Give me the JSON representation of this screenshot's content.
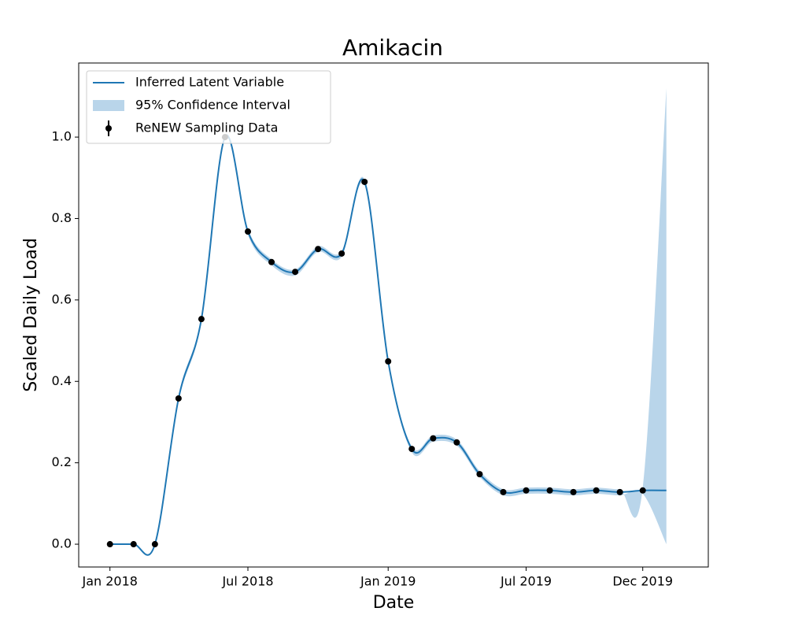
{
  "chart_data": {
    "type": "line",
    "title": "Amikacin",
    "x_label": "Date",
    "y_label": "Scaled Daily Load",
    "xlim": [
      "2017-11-21",
      "2020-02-25"
    ],
    "xticks": [
      {
        "value": "2018-01",
        "label": "Jan 2018"
      },
      {
        "value": "2018-07",
        "label": "Jul 2018"
      },
      {
        "value": "2019-01",
        "label": "Jan 2019"
      },
      {
        "value": "2019-07",
        "label": "Jul 2019"
      },
      {
        "value": "2019-12",
        "label": "Dec 2019"
      }
    ],
    "ylim": [
      -0.056,
      1.182
    ],
    "yticks": [
      {
        "value": 0,
        "label": "0.0"
      },
      0.2,
      0.4,
      0.6,
      0.8,
      {
        "value": 1,
        "label": "1.0"
      }
    ],
    "legend": "upper left",
    "line": {
      "name": "Inferred Latent Variable",
      "color": "#1f77b4",
      "x": [
        "2018-01",
        "2018-02",
        "2018-03",
        "2018-04",
        "2018-05",
        "2018-06",
        "2018-07",
        "2018-08",
        "2018-09",
        "2018-10",
        "2018-11",
        "2018-12",
        "2019-01",
        "2019-02",
        "2019-03",
        "2019-04",
        "2019-05",
        "2019-06",
        "2019-07",
        "2019-08",
        "2019-09",
        "2019-10",
        "2019-11",
        "2019-12",
        "2020-01"
      ],
      "values": [
        0,
        0,
        0,
        0.358,
        0.553,
        1.0,
        0.768,
        0.693,
        0.669,
        0.725,
        0.714,
        0.89,
        0.449,
        0.234,
        0.26,
        0.25,
        0.172,
        0.128,
        0.132,
        0.132,
        0.128,
        0.132,
        0.128,
        0.132,
        0.132
      ]
    },
    "band": {
      "name": "95% Confidence Interval",
      "color": "#b9d5ea",
      "x": [
        "2018-01",
        "2018-02",
        "2018-03",
        "2018-04",
        "2018-05",
        "2018-06",
        "2018-07",
        "2018-08",
        "2018-09",
        "2018-10",
        "2018-11",
        "2018-12",
        "2019-01",
        "2019-02",
        "2019-03",
        "2019-04",
        "2019-05",
        "2019-06",
        "2019-07",
        "2019-08",
        "2019-09",
        "2019-10",
        "2019-11",
        "2019-12",
        "2020-01"
      ],
      "lower": [
        0,
        0,
        0,
        0.35,
        0.545,
        0.995,
        0.76,
        0.685,
        0.66,
        0.718,
        0.706,
        0.882,
        0.442,
        0.226,
        0.252,
        0.242,
        0.165,
        0.12,
        0.124,
        0.124,
        0.12,
        0.124,
        0.12,
        0.124,
        0
      ],
      "upper": [
        0,
        0,
        0,
        0.365,
        0.56,
        1.005,
        0.775,
        0.7,
        0.675,
        0.732,
        0.72,
        0.896,
        0.456,
        0.24,
        0.267,
        0.257,
        0.18,
        0.135,
        0.139,
        0.139,
        0.135,
        0.139,
        0.135,
        0.139,
        1.12
      ]
    },
    "points": {
      "name": "ReNEW Sampling Data",
      "color": "#000000",
      "x": [
        "2018-01",
        "2018-02",
        "2018-03",
        "2018-04",
        "2018-05",
        "2018-06",
        "2018-07",
        "2018-08",
        "2018-09",
        "2018-10",
        "2018-11",
        "2018-12",
        "2019-01",
        "2019-02",
        "2019-03",
        "2019-04",
        "2019-05",
        "2019-06",
        "2019-07",
        "2019-08",
        "2019-09",
        "2019-10",
        "2019-11",
        "2019-12"
      ],
      "values": [
        0,
        0,
        0,
        0.358,
        0.553,
        1.0,
        0.768,
        0.693,
        0.669,
        0.725,
        0.714,
        0.89,
        0.449,
        0.234,
        0.26,
        0.25,
        0.172,
        0.128,
        0.132,
        0.132,
        0.128,
        0.132,
        0.128,
        0.132
      ]
    }
  }
}
